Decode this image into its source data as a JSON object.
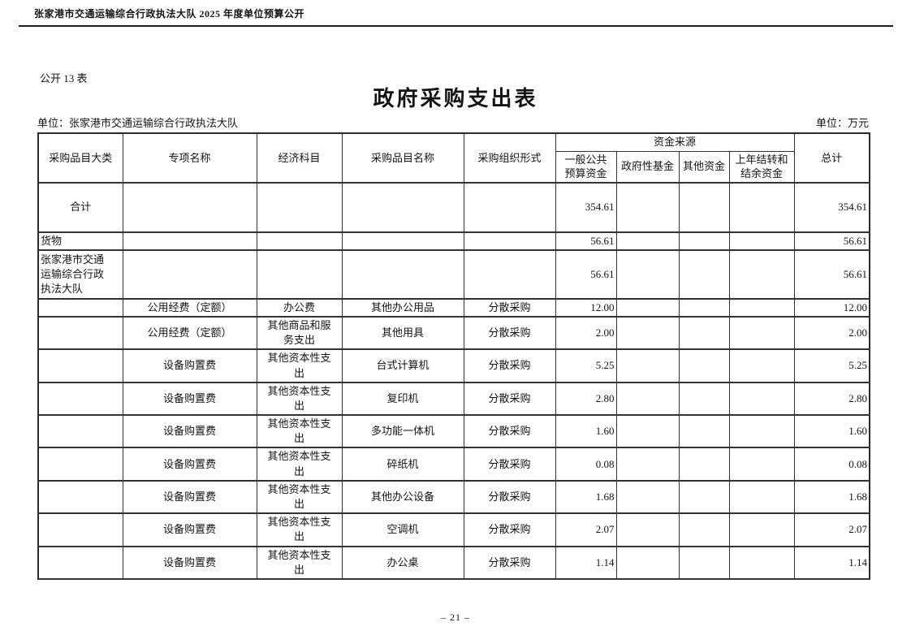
{
  "doc_header": {
    "text": "张家港市交通运输综合行政执法大队 2025 年度单位预算公开"
  },
  "table_label": "公开 13 表",
  "title": "政府采购支出表",
  "unit_left": "单位：张家港市交通运输综合行政执法大队",
  "unit_right": "单位：万元",
  "table": {
    "headers": [
      "采购品目大类",
      "专项名称",
      "经济科目",
      "采购品目名称",
      "采购组织形式"
    ],
    "funding_group_label": "资金来源",
    "funding_columns": [
      "一般公共\n预算资金",
      "政府性基金",
      "其他资金",
      "上年结转和\n结余资金"
    ],
    "total_header": "总计",
    "rows": [
      {
        "cells": [
          "合计",
          "",
          "",
          "",
          "",
          "354.61",
          "",
          "",
          "",
          "354.61"
        ]
      },
      {
        "cells": [
          "货物",
          "",
          "",
          "",
          "",
          "56.61",
          "",
          "",
          "",
          "56.61"
        ]
      },
      {
        "cells": [
          "张家港市交通\n运输综合行政\n执法大队",
          "",
          "",
          "",
          "",
          "56.61",
          "",
          "",
          "",
          "56.61"
        ]
      },
      {
        "cells": [
          "",
          "公用经费（定额）",
          "办公费",
          "其他办公用品",
          "分散采购",
          "12.00",
          "",
          "",
          "",
          "12.00"
        ]
      },
      {
        "cells": [
          "",
          "公用经费（定额）",
          "其他商品和服\n务支出",
          "其他用具",
          "分散采购",
          "2.00",
          "",
          "",
          "",
          "2.00"
        ]
      },
      {
        "cells": [
          "",
          "设备购置费",
          "其他资本性支\n出",
          "台式计算机",
          "分散采购",
          "5.25",
          "",
          "",
          "",
          "5.25"
        ]
      },
      {
        "cells": [
          "",
          "设备购置费",
          "其他资本性支\n出",
          "复印机",
          "分散采购",
          "2.80",
          "",
          "",
          "",
          "2.80"
        ]
      },
      {
        "cells": [
          "",
          "设备购置费",
          "其他资本性支\n出",
          "多功能一体机",
          "分散采购",
          "1.60",
          "",
          "",
          "",
          "1.60"
        ]
      },
      {
        "cells": [
          "",
          "设备购置费",
          "其他资本性支\n出",
          "碎纸机",
          "分散采购",
          "0.08",
          "",
          "",
          "",
          "0.08"
        ]
      },
      {
        "cells": [
          "",
          "设备购置费",
          "其他资本性支\n出",
          "其他办公设备",
          "分散采购",
          "1.68",
          "",
          "",
          "",
          "1.68"
        ]
      },
      {
        "cells": [
          "",
          "设备购置费",
          "其他资本性支\n出",
          "空调机",
          "分散采购",
          "2.07",
          "",
          "",
          "",
          "2.07"
        ]
      },
      {
        "cells": [
          "",
          "设备购置费",
          "其他资本性支\n出",
          "办公桌",
          "分散采购",
          "1.14",
          "",
          "",
          "",
          "1.14"
        ]
      }
    ]
  },
  "footer": {
    "text": "– 21 –"
  }
}
